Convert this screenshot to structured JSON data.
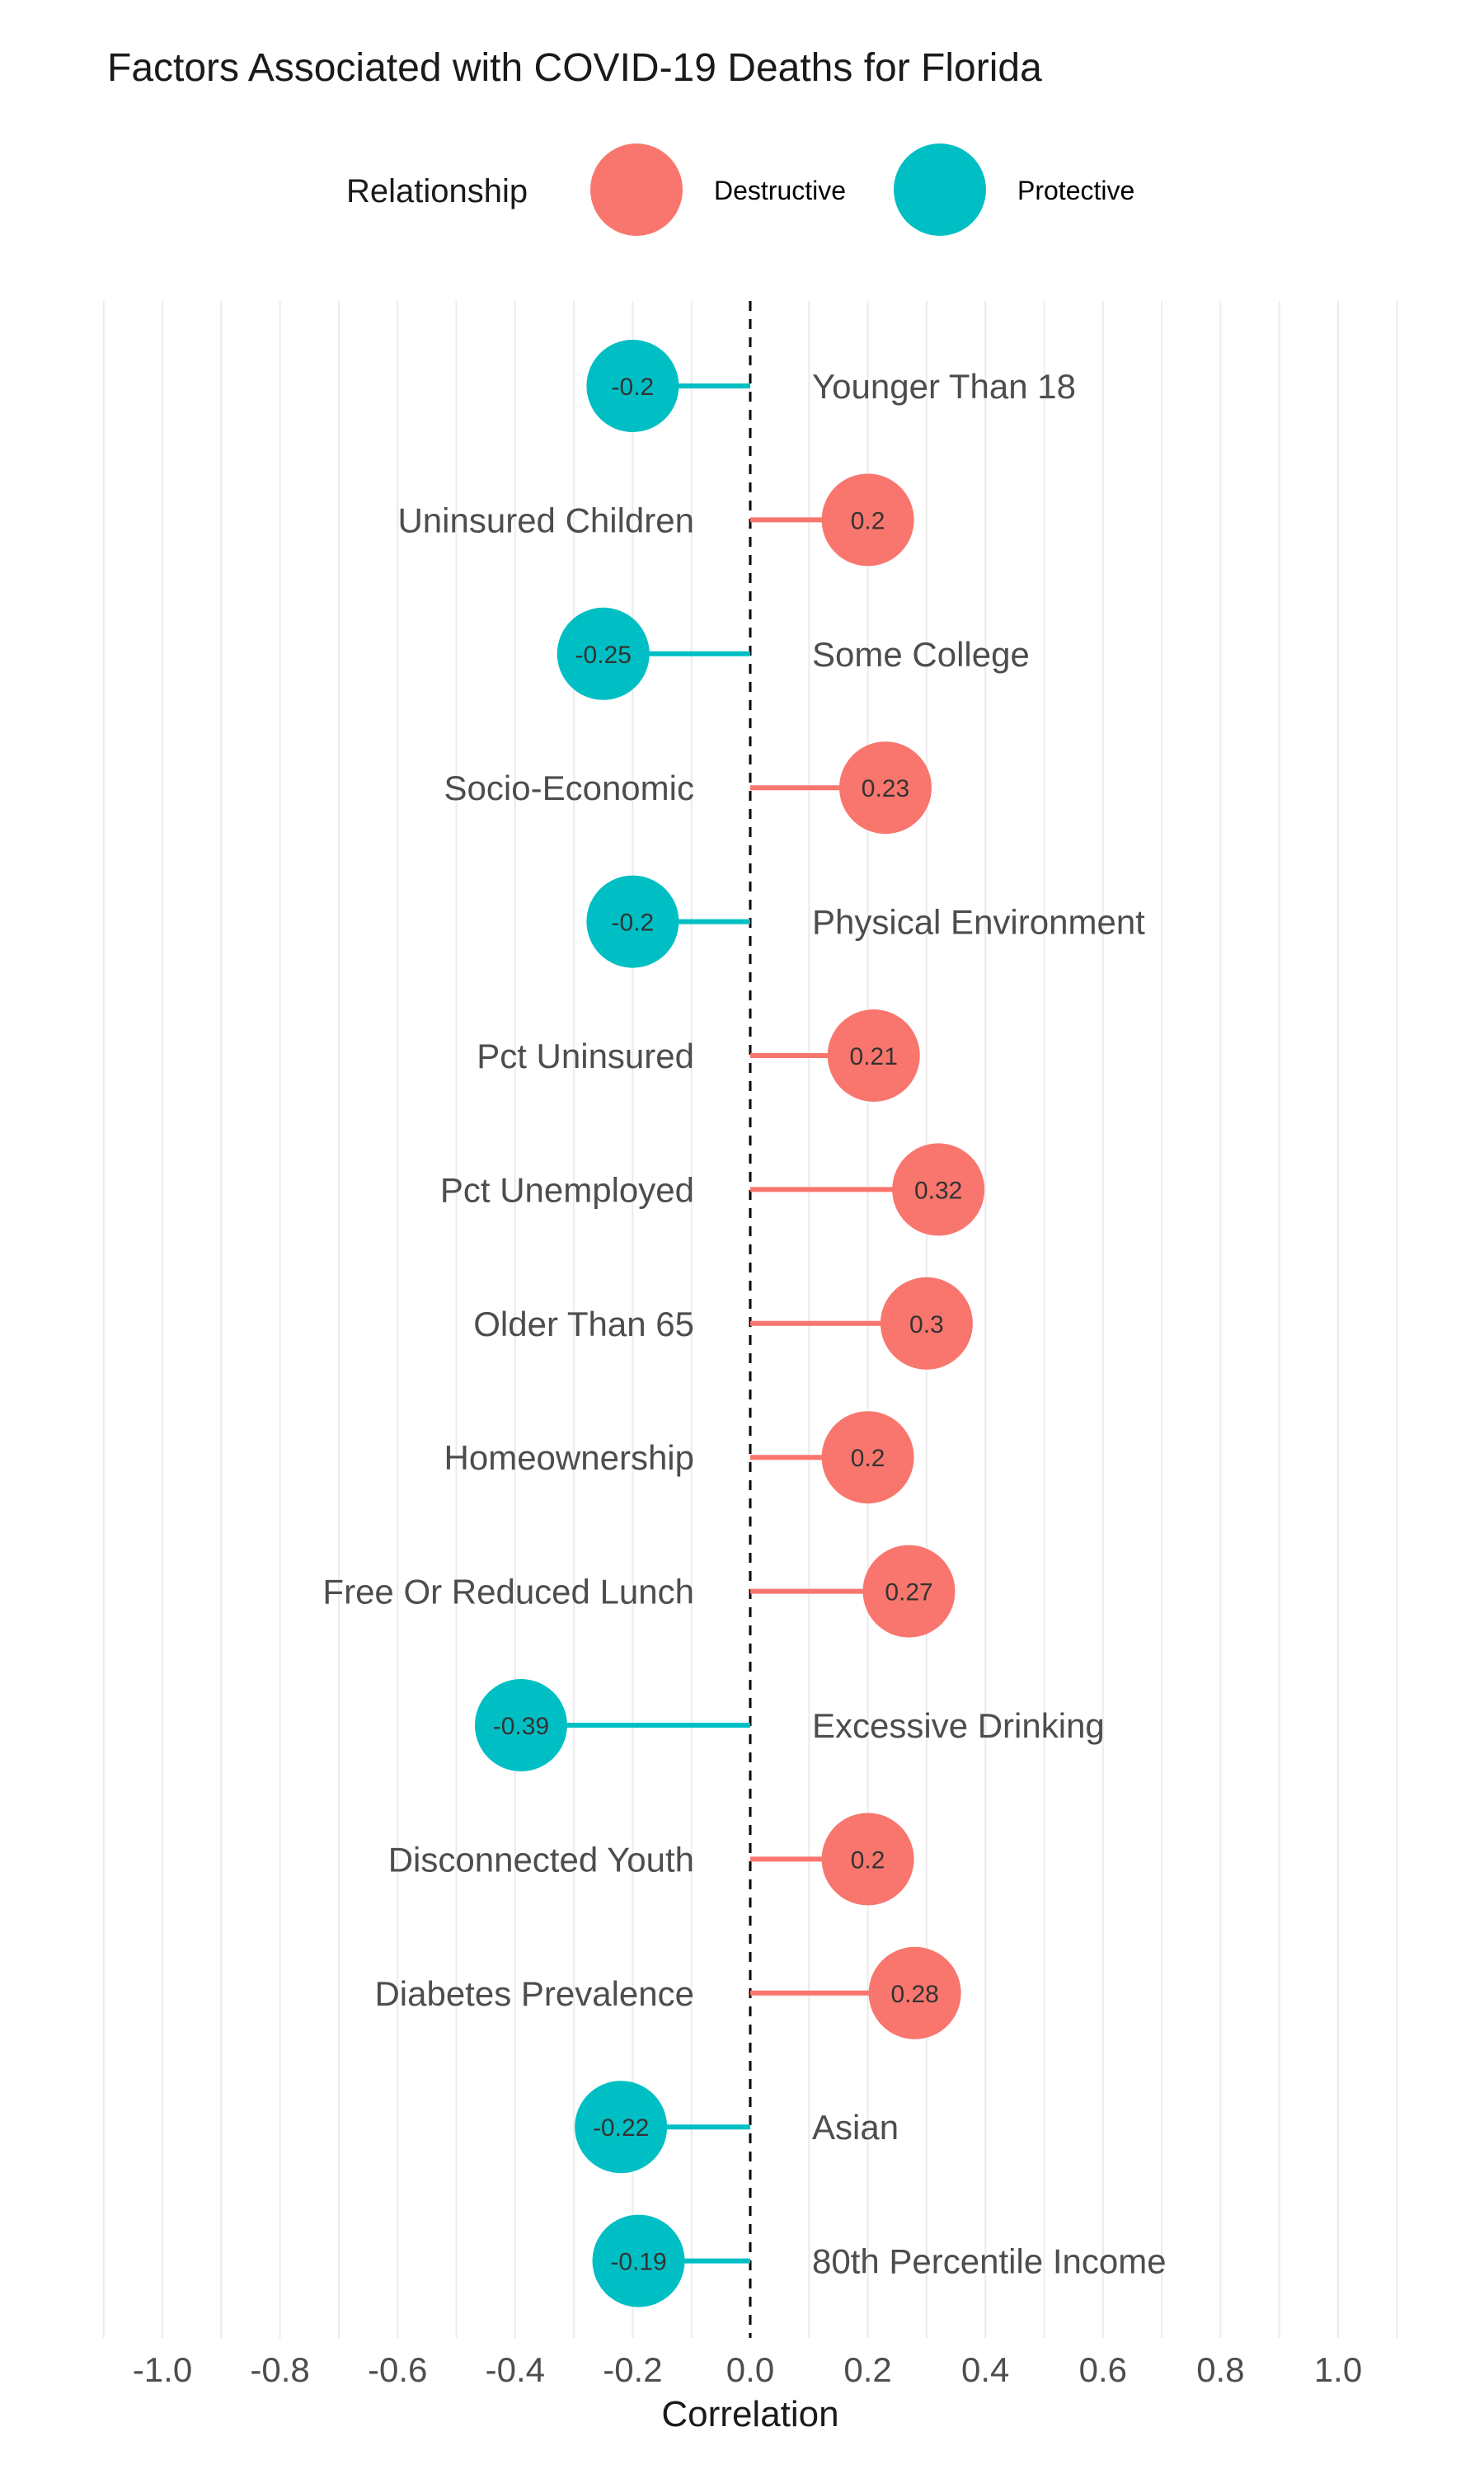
{
  "chart_data": {
    "type": "lollipop",
    "title": "Factors Associated with COVID-19 Deaths for Florida",
    "xlabel": "Correlation",
    "ylabel": "",
    "xlim": [
      -1.1,
      1.1
    ],
    "xticks": [
      -1.0,
      -0.8,
      -0.6,
      -0.4,
      -0.2,
      0.0,
      0.2,
      0.4,
      0.6,
      0.8,
      1.0
    ],
    "xtick_labels": [
      "-1.0",
      "-0.8",
      "-0.6",
      "-0.4",
      "-0.2",
      "0.0",
      "0.2",
      "0.4",
      "0.6",
      "0.8",
      "1.0"
    ],
    "grid": true,
    "reference_line": 0,
    "legend": {
      "title": "Relationship",
      "position": "top",
      "entries": [
        {
          "label": "Destructive",
          "color": "#F8766D"
        },
        {
          "label": "Protective",
          "color": "#00BFC4"
        }
      ]
    },
    "points": [
      {
        "category": "Younger Than 18",
        "value": -0.2,
        "label": "-0.2",
        "relationship": "Protective"
      },
      {
        "category": "Uninsured Children",
        "value": 0.2,
        "label": "0.2",
        "relationship": "Destructive"
      },
      {
        "category": "Some College",
        "value": -0.25,
        "label": "-0.25",
        "relationship": "Protective"
      },
      {
        "category": "Socio-Economic",
        "value": 0.23,
        "label": "0.23",
        "relationship": "Destructive"
      },
      {
        "category": "Physical Environment",
        "value": -0.2,
        "label": "-0.2",
        "relationship": "Protective"
      },
      {
        "category": "Pct Uninsured",
        "value": 0.21,
        "label": "0.21",
        "relationship": "Destructive"
      },
      {
        "category": "Pct Unemployed",
        "value": 0.32,
        "label": "0.32",
        "relationship": "Destructive"
      },
      {
        "category": "Older Than 65",
        "value": 0.3,
        "label": "0.3",
        "relationship": "Destructive"
      },
      {
        "category": "Homeownership",
        "value": 0.2,
        "label": "0.2",
        "relationship": "Destructive"
      },
      {
        "category": "Free Or Reduced Lunch",
        "value": 0.27,
        "label": "0.27",
        "relationship": "Destructive"
      },
      {
        "category": "Excessive Drinking",
        "value": -0.39,
        "label": "-0.39",
        "relationship": "Protective"
      },
      {
        "category": "Disconnected Youth",
        "value": 0.2,
        "label": "0.2",
        "relationship": "Destructive"
      },
      {
        "category": "Diabetes Prevalence",
        "value": 0.28,
        "label": "0.28",
        "relationship": "Destructive"
      },
      {
        "category": "Asian",
        "value": -0.22,
        "label": "-0.22",
        "relationship": "Protective"
      },
      {
        "category": "80th Percentile Income",
        "value": -0.19,
        "label": "-0.19",
        "relationship": "Protective"
      }
    ]
  }
}
